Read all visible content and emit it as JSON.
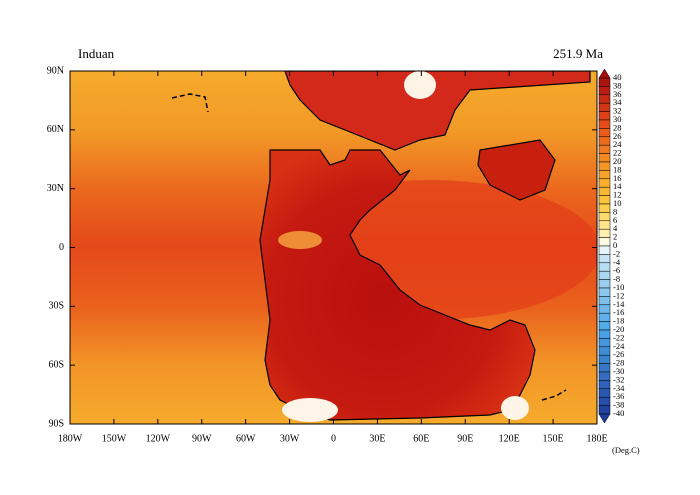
{
  "chart_data": {
    "type": "map",
    "title": "Induan",
    "subtitle": "251.9 Ma",
    "xlim": [
      -180,
      180
    ],
    "ylim": [
      -90,
      90
    ],
    "xticks": [
      {
        "value": -180,
        "label": "180W"
      },
      {
        "value": -150,
        "label": "150W"
      },
      {
        "value": -120,
        "label": "120W"
      },
      {
        "value": -90,
        "label": "90W"
      },
      {
        "value": -60,
        "label": "60W"
      },
      {
        "value": -30,
        "label": "30W"
      },
      0,
      {
        "value": 30,
        "label": "30E"
      },
      {
        "value": 60,
        "label": "60E"
      },
      {
        "value": 90,
        "label": "90E"
      },
      {
        "value": 120,
        "label": "120E"
      },
      {
        "value": 150,
        "label": "150E"
      },
      {
        "value": 180,
        "label": "180E"
      }
    ],
    "yticks": [
      {
        "value": 90,
        "label": "90N"
      },
      {
        "value": 60,
        "label": "60N"
      },
      {
        "value": 30,
        "label": "30N"
      },
      0,
      {
        "value": -30,
        "label": "30S"
      },
      {
        "value": -60,
        "label": "60S"
      },
      {
        "value": -90,
        "label": "90S"
      }
    ],
    "colorbar": {
      "label": "(Deg.C)",
      "ticks": [
        40,
        38,
        36,
        34,
        32,
        30,
        28,
        26,
        24,
        22,
        20,
        18,
        16,
        14,
        12,
        10,
        8,
        6,
        4,
        2,
        0,
        -2,
        -4,
        -6,
        -8,
        -10,
        -12,
        -14,
        -16,
        -18,
        -20,
        -22,
        -24,
        -26,
        -28,
        -30,
        -32,
        -34,
        -36,
        -38,
        -40
      ]
    }
  }
}
